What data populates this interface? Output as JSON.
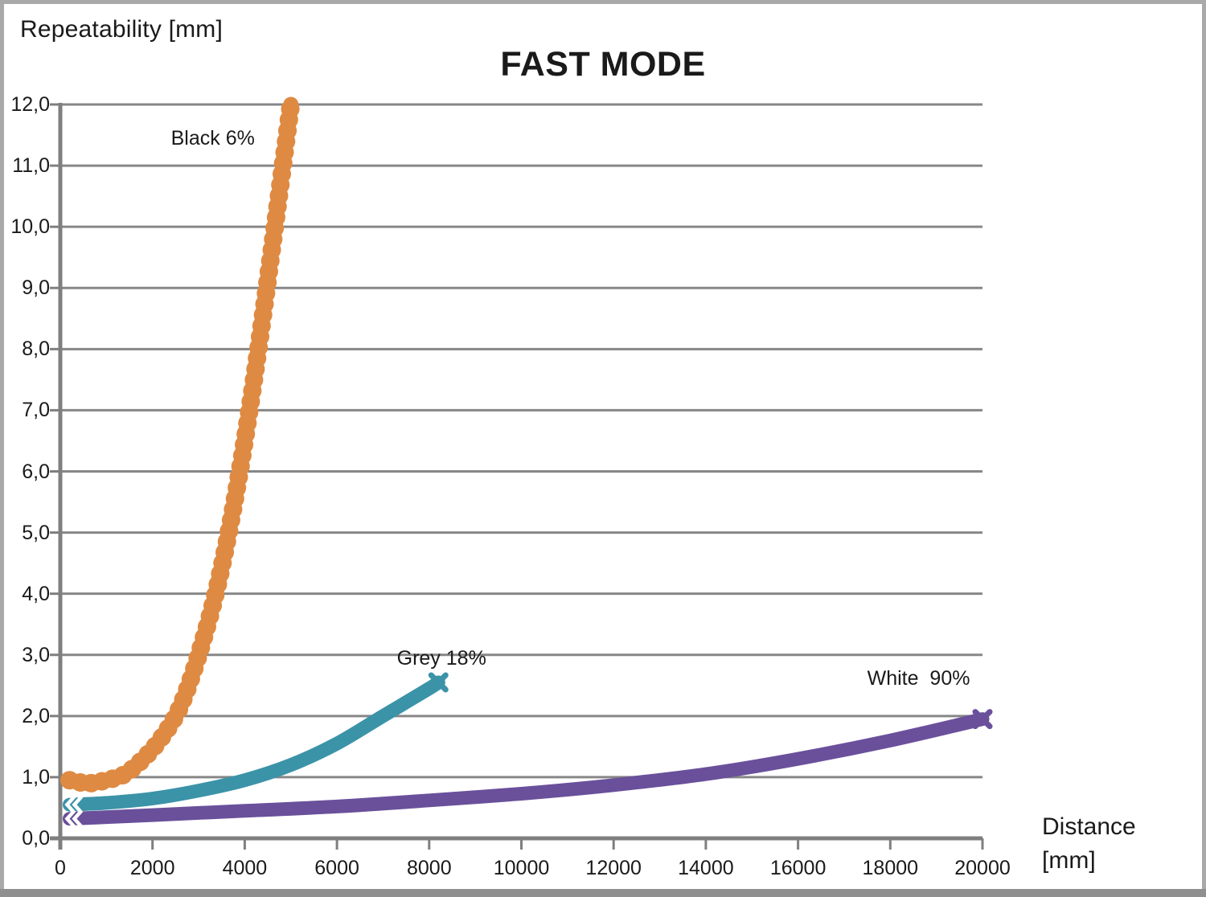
{
  "header": {
    "y_axis_title": "Repeatability [mm]",
    "title": "FAST MODE"
  },
  "x_axis_title_lines": [
    "Distance",
    "[mm]"
  ],
  "chart_data": {
    "type": "line",
    "title": "FAST MODE",
    "xlabel": "Distance [mm]",
    "ylabel": "Repeatability [mm]",
    "xlim": [
      0,
      20000
    ],
    "ylim": [
      0,
      12
    ],
    "x_ticks": [
      0,
      2000,
      4000,
      6000,
      8000,
      10000,
      12000,
      14000,
      16000,
      18000,
      20000
    ],
    "x_tick_labels": [
      "0",
      "2000",
      "4000",
      "6000",
      "8000",
      "10000",
      "12000",
      "14000",
      "16000",
      "18000",
      "20000"
    ],
    "y_ticks": [
      0,
      1,
      2,
      3,
      4,
      5,
      6,
      7,
      8,
      9,
      10,
      11,
      12
    ],
    "y_tick_labels": [
      "0,0",
      "1,0",
      "2,0",
      "3,0",
      "4,0",
      "5,0",
      "6,0",
      "7,0",
      "8,0",
      "9,0",
      "10,0",
      "11,0",
      "12,0"
    ],
    "grid": "horizontal-only",
    "grid_color": "#878787",
    "axis_color": "#7f7f7f",
    "legend_position": "inline-annotations",
    "series": [
      {
        "name": "Black 6%",
        "color": "#DF8A42",
        "marker": "circle",
        "x": [
          200,
          600,
          1000,
          1400,
          1800,
          2200,
          2600,
          3000,
          3400,
          3800,
          4200,
          4600,
          5000
        ],
        "values": [
          0.95,
          0.9,
          0.95,
          1.05,
          1.3,
          1.65,
          2.15,
          3.0,
          4.1,
          5.6,
          7.5,
          9.7,
          12.0
        ]
      },
      {
        "name": "Grey 18%",
        "color": "#3B93A8",
        "marker": "x",
        "x": [
          200,
          1000,
          2000,
          3000,
          4000,
          5000,
          6000,
          7000,
          8000,
          8200
        ],
        "values": [
          0.55,
          0.58,
          0.65,
          0.78,
          0.95,
          1.2,
          1.55,
          2.0,
          2.45,
          2.55
        ]
      },
      {
        "name": "White  90%",
        "color": "#6A509B",
        "marker": "x",
        "x": [
          200,
          2000,
          4000,
          6000,
          8000,
          10000,
          12000,
          14000,
          16000,
          18000,
          20000
        ],
        "values": [
          0.32,
          0.38,
          0.45,
          0.52,
          0.62,
          0.73,
          0.87,
          1.05,
          1.3,
          1.6,
          1.95
        ]
      }
    ],
    "annotations": [
      {
        "text": "Black 6%",
        "x": 2400,
        "y": 11.45
      },
      {
        "text": "Grey 18%",
        "x": 7300,
        "y": 2.95
      },
      {
        "text": "White  90%",
        "x": 17500,
        "y": 2.62
      }
    ]
  }
}
